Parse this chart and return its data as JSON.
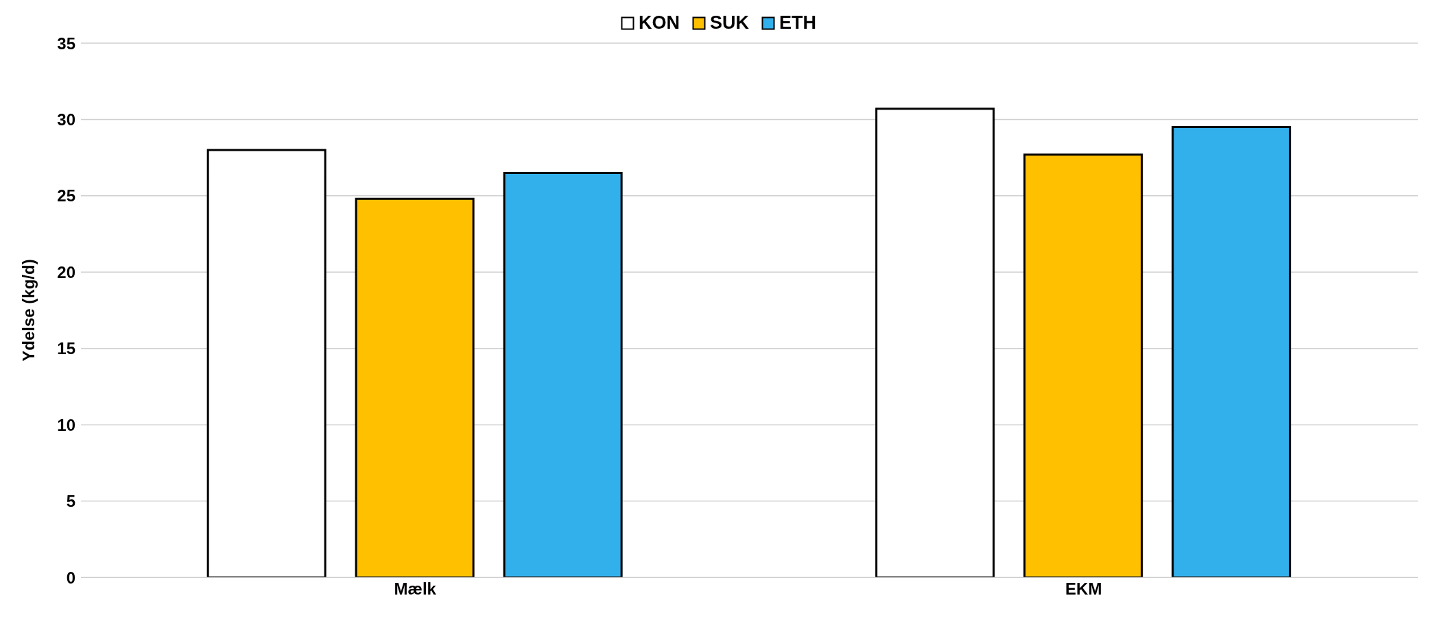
{
  "chart_data": {
    "type": "bar",
    "ylabel": "Ydelse (kg/d)",
    "categories": [
      "Mælk",
      "EKM"
    ],
    "series": [
      {
        "name": "KON",
        "color": "#ffffff",
        "values": [
          28.0,
          30.7
        ]
      },
      {
        "name": "SUK",
        "color": "#ffc000",
        "values": [
          24.8,
          27.7
        ]
      },
      {
        "name": "ETH",
        "color": "#32b0ec",
        "values": [
          26.5,
          29.5
        ]
      }
    ],
    "ylim": [
      0,
      35
    ],
    "yticks": [
      0,
      5,
      10,
      15,
      20,
      25,
      30,
      35
    ],
    "grid": "y",
    "legend": "top"
  }
}
